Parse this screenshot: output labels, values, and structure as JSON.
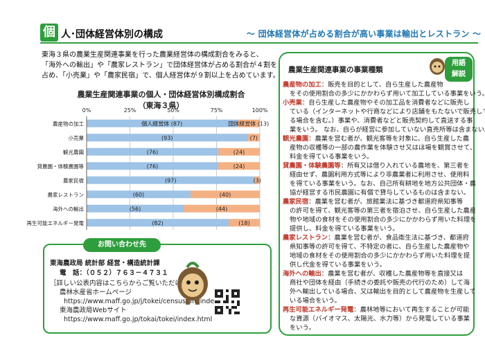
{
  "header": {
    "kanji": "個",
    "title": "人･団体経営体別の構成",
    "subtitle": "～ 団体経営体が占める割合が高い事業は輸出とレストラン ～"
  },
  "intro": {
    "lines": [
      "東海３県の農業生産関連事業を行った農業経営体の構成割合をみると、",
      "「海外への輸出」や「農家レストラン」で団体経営体が占める割合が４割を",
      "占め、「小売業」や「農家民宿」で、個人経営体が９割以上を占めています。"
    ]
  },
  "chart_data": {
    "type": "bar",
    "stacked": true,
    "orientation": "horizontal",
    "title": "農業生産関連事業の個人・団体経営体別構成割合",
    "subtitle": "（東海３県）",
    "ticks": [
      "0%",
      "25%",
      "50%",
      "75%",
      "100%"
    ],
    "xlim": [
      0,
      100
    ],
    "categories": [
      "農産物の加工",
      "小売業",
      "観光農園",
      "貸農園・体験農園等",
      "農家民宿",
      "農家レストラン",
      "海外への輸出",
      "再生可能エネルギー発電"
    ],
    "series": [
      {
        "name": "個人経営体",
        "color": "#9dc3e6",
        "values": [
          87,
          93,
          76,
          76,
          97,
          60,
          56,
          82
        ],
        "labels": [
          "個人経営体 (87)",
          "(93)",
          "(76)",
          "(76)",
          "(97)",
          "(60)",
          "(56)",
          "(82)"
        ]
      },
      {
        "name": "団体経営体",
        "color": "#f4b183",
        "values": [
          13,
          7,
          24,
          24,
          3,
          40,
          44,
          18
        ],
        "labels": [
          "団体経営体 (13)",
          "(7)",
          "(24)",
          "(24)",
          "(3)",
          "(40)",
          "(44)",
          "(18)"
        ]
      }
    ],
    "grid": true
  },
  "contact": {
    "heading": "お問い合わせ先",
    "org": "東海農政局 統計部 経営・構造統計課",
    "phone": "電　話：（０５２）７６３－４７３１",
    "note": "［詳しい公表内容はこちらからご覧いただけます］",
    "link1_label": "農林水産省ホームページ",
    "link1_url": "https://www.maff.go.jp/j/tokei/census/afc/index.html",
    "link2_label": "東海農政局Webサイト",
    "link2_url": "https://www.maff.go.jp/tokai/tokei/index.html"
  },
  "glossary": {
    "label_line1": "用語",
    "label_line2": "解説",
    "heading": "農業生産関連事業の事業種類",
    "entries": [
      {
        "term": "農産物の加工",
        "lines": [
          "：販売を目的として、自ら生産した農産物",
          "をその使用割合の多少にかかわらず用いて加工している事業をいう。"
        ]
      },
      {
        "term": "小売業",
        "lines": [
          "：自ら生産した農産物やその加工品を消費者などに販売し",
          "ている（インターネットや行商などにより店舗をもたないで販売してい",
          "る場合を含む。）事業や、消費者などと販売契約して直送する事",
          "業をいう。 なお、自らが経営に参加していない直売所等は含まない。"
        ]
      },
      {
        "term": "観光農園",
        "lines": [
          "：農業を営む者が、観光客等を対象に、自ら生産した農",
          "産物の収穫等の一部の農作業を体験させ又はほ場を観賞させて、",
          "料金を得ている事業をいう。"
        ]
      },
      {
        "term": "貸農園・体験農園等",
        "lines": [
          "：所有又は借り入れている農地を、第三者を",
          "経由せず、農園利用方式等により非農業者に利用させ、使用料",
          "を得ている事業をいう。なお、自己所有耕地を地方公共団体・農",
          "協が経営する市民農園に有償で貸与しているものは含まない。"
        ]
      },
      {
        "term": "農家民宿",
        "lines": [
          "：農業を営む者が、旅館業法に基づき都道府県知事等",
          "の許可を得て、観光客等の第三者を宿泊させ、自ら生産した農産",
          "物や地域の食材をその使用割合の多少にかかわらず用いた料理を",
          "提供し、料金を得ている事業をいう。"
        ]
      },
      {
        "term": "農家レストラン",
        "lines": [
          "：農業を営む者が、食品衛生法に基づき、都道府",
          "県知事等の許可を得て、不特定の者に、自ら生産した農産物や",
          "地域の食材をその使用割合の多少にかかわらず用いた料理を提",
          "供し代金を得ている事業をいう。"
        ]
      },
      {
        "term": "海外への輸出",
        "lines": [
          "：農業を営む者が、収穫した農産物等を直接又は",
          "商社や団体を経由（手続きの委託や販売の代行のため）して海",
          "外へ輸出している場合、又は輸出を目的として農産物を生産して",
          "いる場合をいう。"
        ]
      },
      {
        "term": "再生可能エネルギー発電",
        "lines": [
          "：農林地等において再生することが可能",
          "な資源（バイオマス、太陽光、水力等）から発電している事業",
          "をいう。"
        ]
      }
    ]
  }
}
